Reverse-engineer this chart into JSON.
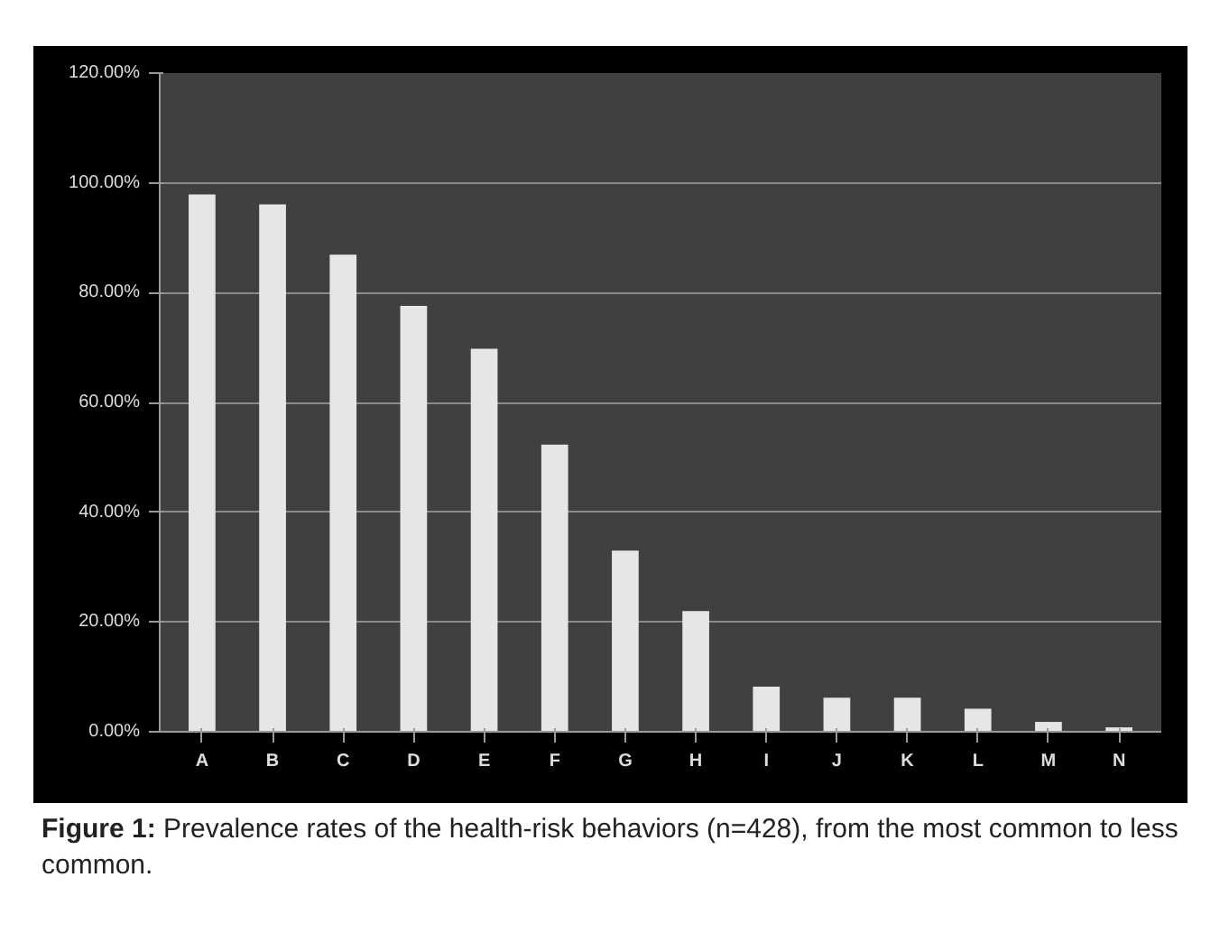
{
  "chart_data": {
    "type": "bar",
    "categories": [
      "A",
      "B",
      "C",
      "D",
      "E",
      "F",
      "G",
      "H",
      "I",
      "J",
      "K",
      "L",
      "M",
      "N"
    ],
    "values": [
      97.9,
      96.1,
      86.9,
      77.6,
      69.8,
      52.3,
      33.0,
      22.0,
      8.2,
      6.2,
      6.2,
      4.2,
      1.8,
      0.8
    ],
    "color": "#e6e6e6",
    "ylim": [
      0,
      120
    ],
    "yticks": [
      {
        "value": 0,
        "label": "0.00%"
      },
      {
        "value": 20,
        "label": "20.00%"
      },
      {
        "value": 40,
        "label": "40.00%"
      },
      {
        "value": 60,
        "label": "60.00%"
      },
      {
        "value": 80,
        "label": "80.00%"
      },
      {
        "value": 100,
        "label": "100.00%"
      },
      {
        "value": 120,
        "label": "120.00%"
      }
    ],
    "grid": "y",
    "annotations": [
      "Figure 1: Prevalence rates of the health-risk behaviors (n=428), from the most common to less common."
    ]
  }
}
